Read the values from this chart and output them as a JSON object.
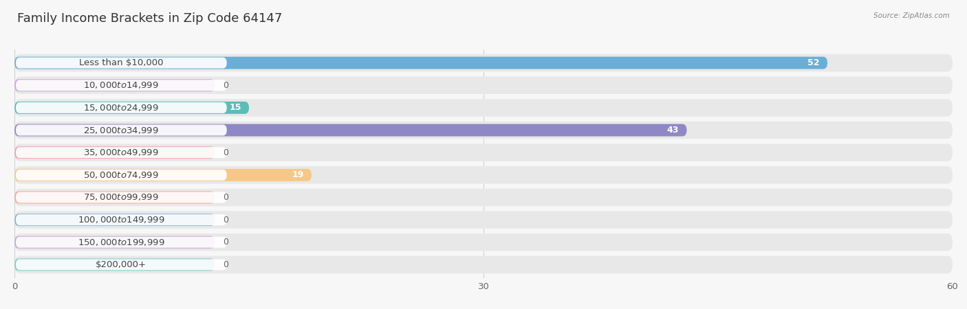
{
  "title": "Family Income Brackets in Zip Code 64147",
  "source": "Source: ZipAtlas.com",
  "categories": [
    "Less than $10,000",
    "$10,000 to $14,999",
    "$15,000 to $24,999",
    "$25,000 to $34,999",
    "$35,000 to $49,999",
    "$50,000 to $74,999",
    "$75,000 to $99,999",
    "$100,000 to $149,999",
    "$150,000 to $199,999",
    "$200,000+"
  ],
  "values": [
    52,
    0,
    15,
    43,
    0,
    19,
    0,
    0,
    0,
    0
  ],
  "bar_colors": [
    "#6aaed6",
    "#c9a8d4",
    "#5bbcb8",
    "#9088c4",
    "#f4a0b0",
    "#f5c887",
    "#f4a898",
    "#8ab4d8",
    "#c4a8d4",
    "#7accc8"
  ],
  "xlim": [
    0,
    60
  ],
  "xticks": [
    0,
    30,
    60
  ],
  "background_color": "#f7f7f7",
  "row_bg_color": "#e8e8e8",
  "title_fontsize": 13,
  "label_fontsize": 9.5,
  "value_fontsize": 9
}
